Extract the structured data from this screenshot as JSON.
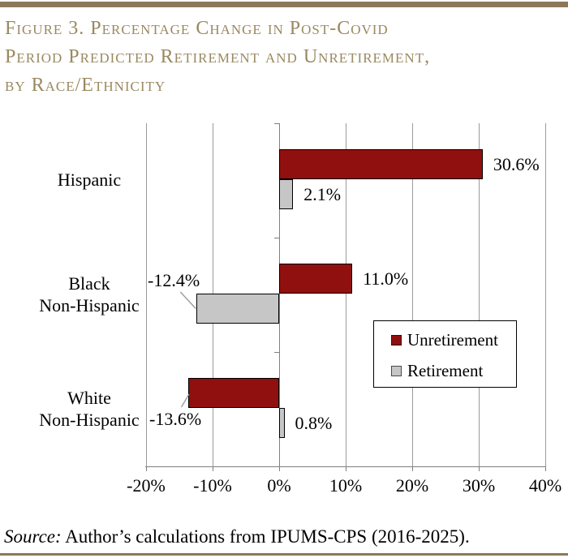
{
  "header": {
    "title_lines": [
      "Figure 3. Percentage Change in Post-Covid",
      "Period Predicted Retirement and Unretirement,",
      "by Race/Ethnicity"
    ]
  },
  "footer": {
    "source_prefix": "Source:",
    "source_text": " Author’s calculations from IPUMS-CPS (2016-2025)."
  },
  "colors": {
    "title_tan": "#9a8960",
    "rule": "#8a795a",
    "unretirement_red": "#8f100e",
    "retirement_gray": "#c6c6c6",
    "gridline_gray": "#9b9b9b",
    "axis_gray": "#7f7f7f"
  },
  "chart_data": {
    "type": "bar",
    "orientation": "horizontal",
    "title": "Figure 3. Percentage Change in Post-Covid Period Predicted Retirement and Unretirement, by Race/Ethnicity",
    "categories": [
      "Hispanic",
      "Black Non-Hispanic",
      "White Non-Hispanic"
    ],
    "category_label_lines": [
      [
        "Hispanic"
      ],
      [
        "Black",
        "Non-Hispanic"
      ],
      [
        "White",
        "Non-Hispanic"
      ]
    ],
    "series": [
      {
        "name": "Unretirement",
        "color": "#8f100e",
        "values": [
          30.6,
          11.0,
          -13.6
        ],
        "labels": [
          "30.6%",
          "11.0%",
          "-13.6%"
        ],
        "label_placements": [
          "right",
          "right",
          "callout_below"
        ]
      },
      {
        "name": "Retirement",
        "color": "#c6c6c6",
        "values": [
          2.1,
          -12.4,
          0.8
        ],
        "labels": [
          "2.1%",
          "-12.4%",
          "0.8%"
        ],
        "label_placements": [
          "right",
          "callout_above",
          "right"
        ]
      }
    ],
    "xlim": [
      -20,
      40
    ],
    "x_ticks": [
      -20,
      -10,
      0,
      10,
      20,
      30,
      40
    ],
    "x_tick_labels": [
      "-20%",
      "-10%",
      "0%",
      "10%",
      "20%",
      "30%",
      "40%"
    ],
    "grid": "vertical gridlines on",
    "legend_position": "inside lower-right box",
    "xlabel": "",
    "ylabel": ""
  }
}
